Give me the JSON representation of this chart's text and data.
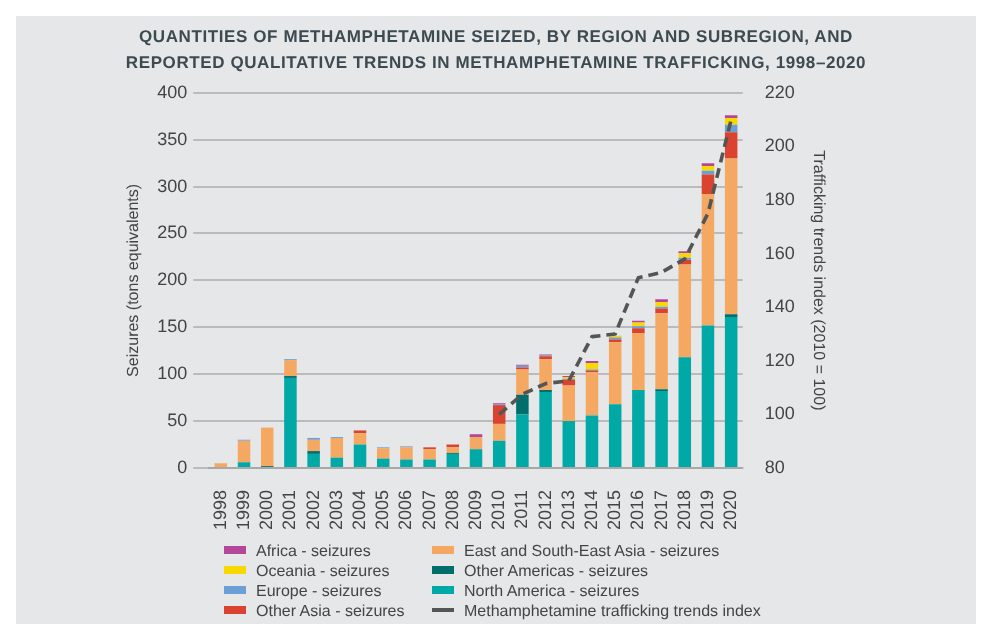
{
  "chart_data": {
    "type": "bar",
    "title": "QUANTITIES OF METHAMPHETAMINE SEIZED, BY REGION AND SUBREGION, AND REPORTED QUALITATIVE TRENDS IN METHAMPHETAMINE TRAFFICKING, 1998–2020",
    "ylabel": "Seizures (tons equivalents)",
    "y2label": "Trafficking trends index (2010 = 100)",
    "categories": [
      "1998",
      "1999",
      "2000",
      "2001",
      "2002",
      "2003",
      "2004",
      "2005",
      "2006",
      "2007",
      "2008",
      "2009",
      "2010",
      "2011",
      "2012",
      "2013",
      "2014",
      "2015",
      "2016",
      "2017",
      "2018",
      "2019",
      "2020"
    ],
    "stacked": true,
    "grid": "y",
    "legend": "bottom",
    "ylim": [
      0,
      400
    ],
    "yticks": [
      0,
      50,
      100,
      150,
      200,
      250,
      300,
      350,
      400
    ],
    "y2lim": [
      80,
      220
    ],
    "y2ticks": [
      80,
      100,
      120,
      140,
      160,
      180,
      200,
      220
    ],
    "series": [
      {
        "name": "North America - seizures",
        "color": "#00a9a5",
        "values": [
          0,
          6,
          0,
          96,
          15,
          11,
          25,
          10,
          9,
          9,
          15,
          20,
          29,
          57,
          81,
          50,
          56,
          68,
          83,
          82,
          118,
          152,
          161
        ]
      },
      {
        "name": "Other Americas - seizures",
        "color": "#006f6c",
        "values": [
          0,
          0,
          2,
          2,
          3,
          0,
          0,
          0,
          0,
          0,
          1,
          0,
          0,
          21,
          2,
          0,
          0,
          0,
          0,
          2,
          0,
          0,
          3
        ]
      },
      {
        "name": "East and South-East Asia - seizures",
        "color": "#f5a862",
        "values": [
          5,
          23,
          41,
          17,
          12,
          21,
          12,
          11,
          13,
          11,
          6,
          13,
          18,
          27,
          33,
          38,
          46,
          66,
          61,
          81,
          99,
          140,
          166
        ]
      },
      {
        "name": "Other Asia - seizures",
        "color": "#d9432f",
        "values": [
          0,
          0,
          0,
          0,
          0,
          0,
          3,
          0,
          0,
          2,
          3,
          0,
          20,
          2,
          3,
          6,
          2,
          3,
          5,
          5,
          5,
          21,
          28
        ]
      },
      {
        "name": "Europe - seizures",
        "color": "#6a9fd8",
        "values": [
          0,
          1,
          null,
          1,
          2,
          1,
          0,
          1,
          1,
          0,
          0,
          0,
          1,
          2,
          1,
          1,
          1,
          2,
          2,
          2,
          2,
          4,
          8
        ]
      },
      {
        "name": "Oceania - seizures",
        "color": "#f7d800",
        "values": [
          0,
          0,
          0,
          0,
          0,
          0,
          0,
          0,
          0,
          0,
          0,
          0,
          0,
          0,
          0,
          2,
          7,
          2,
          4,
          5,
          5,
          5,
          7
        ]
      },
      {
        "name": "Africa - seizures",
        "color": "#b5479a",
        "values": [
          0,
          0,
          0,
          0,
          0,
          0,
          0,
          0,
          0,
          0,
          0,
          3,
          1,
          1,
          1,
          1,
          2,
          null,
          2,
          3,
          2,
          3,
          3
        ]
      },
      {
        "name": "Methamphetamine trafficking trends index",
        "type": "line",
        "axis": "y2",
        "color": "#555555",
        "line_style": "dashed",
        "marker": "none",
        "values": [
          null,
          null,
          null,
          null,
          null,
          null,
          null,
          null,
          null,
          null,
          null,
          null,
          100,
          107.5,
          111.5,
          112.5,
          129,
          130,
          151,
          153,
          158,
          175,
          210
        ]
      }
    ]
  }
}
